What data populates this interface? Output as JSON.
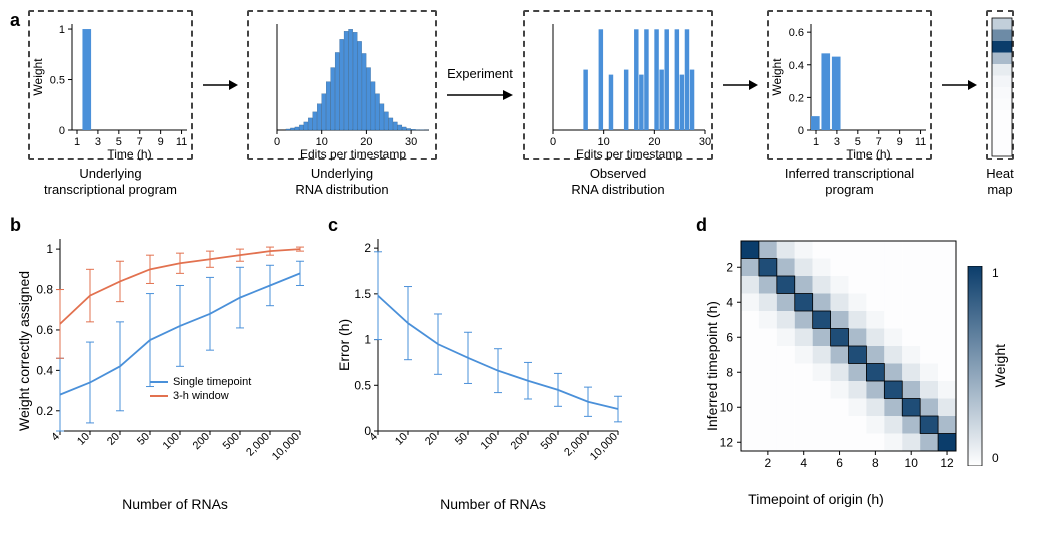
{
  "colors": {
    "blue": "#4a90d9",
    "orange": "#e2714f",
    "axis": "#000000",
    "dashed_border": "#444444",
    "bg": "#ffffff",
    "heat_dark": "#0b3d6b",
    "heat_mid": "#6fa3cf",
    "heat_light": "#dde9f3"
  },
  "panel_a": {
    "label": "a",
    "p1": {
      "caption": "Underlying\ntranscriptional program",
      "ylabel": "Weight",
      "xlabel": "Time (h)",
      "xticks": [
        "1",
        "3",
        "5",
        "7",
        "9",
        "11"
      ],
      "yticks": [
        "0",
        "0.5",
        "1"
      ],
      "ylim": [
        0,
        1.05
      ],
      "bars": {
        "x": 2,
        "h": 1.0
      }
    },
    "p2": {
      "caption": "Underlying\nRNA distribution",
      "xlabel": "Edits per timestamp",
      "xticks": [
        "0",
        "10",
        "20",
        "30"
      ],
      "hist": {
        "xmin": 0,
        "xmax": 34,
        "nbins": 34,
        "heights": [
          0,
          0,
          0.01,
          0.02,
          0.03,
          0.05,
          0.08,
          0.12,
          0.18,
          0.26,
          0.36,
          0.48,
          0.62,
          0.77,
          0.9,
          0.98,
          1.0,
          0.97,
          0.88,
          0.76,
          0.62,
          0.48,
          0.36,
          0.26,
          0.18,
          0.12,
          0.08,
          0.05,
          0.03,
          0.015,
          0.008,
          0.004,
          0.002,
          0.001
        ]
      }
    },
    "arrow1": {
      "label": ""
    },
    "arrow2": {
      "label": "Experiment"
    },
    "p3": {
      "caption": "Observed\nRNA distribution",
      "xlabel": "Edits per timestamp",
      "xticks": [
        "0",
        "10",
        "20",
        "30"
      ],
      "bars_x": [
        6,
        9,
        11,
        14,
        16,
        17,
        18,
        20,
        21,
        22,
        24,
        25,
        26,
        27
      ],
      "bars_h": [
        0.6,
        1,
        0.55,
        0.6,
        1,
        0.55,
        1,
        1,
        0.6,
        1,
        1,
        0.55,
        1,
        0.6
      ]
    },
    "arrow3": {
      "label": ""
    },
    "p4": {
      "caption": "Inferred transcriptional\nprogram",
      "ylabel": "Weight",
      "xlabel": "Time (h)",
      "xticks": [
        "1",
        "3",
        "5",
        "7",
        "9",
        "11"
      ],
      "yticks": [
        "0",
        "0.2",
        "0.4",
        "0.6"
      ],
      "ylim": [
        0,
        0.65
      ],
      "bars": [
        {
          "x": 1,
          "h": 0.085
        },
        {
          "x": 2,
          "h": 0.47
        },
        {
          "x": 3,
          "h": 0.45
        }
      ]
    },
    "arrow4": {
      "label": ""
    },
    "p5": {
      "caption": "Heat\nmap",
      "cells": [
        0.25,
        0.6,
        1.0,
        0.35,
        0.1,
        0.05,
        0.03,
        0.02,
        0.01,
        0.01,
        0.01,
        0.01
      ]
    }
  },
  "panel_b": {
    "label": "b",
    "ylabel": "Weight correctly assigned",
    "xlabel": "Number of RNAs",
    "xticks": [
      "4",
      "10",
      "20",
      "50",
      "100",
      "200",
      "500",
      "2,000",
      "10,000"
    ],
    "yticks": [
      "0.2",
      "0.4",
      "0.6",
      "0.8",
      "1"
    ],
    "ylim": [
      0.1,
      1.05
    ],
    "legend": [
      {
        "label": "Single timepoint",
        "color_key": "blue"
      },
      {
        "label": "3-h window",
        "color_key": "orange"
      }
    ],
    "series1": {
      "color_key": "blue",
      "y": [
        0.28,
        0.34,
        0.42,
        0.55,
        0.62,
        0.68,
        0.76,
        0.82,
        0.88
      ],
      "err": [
        0.18,
        0.2,
        0.22,
        0.23,
        0.2,
        0.18,
        0.15,
        0.1,
        0.06
      ]
    },
    "series2": {
      "color_key": "orange",
      "y": [
        0.63,
        0.77,
        0.84,
        0.9,
        0.93,
        0.95,
        0.97,
        0.99,
        1.0
      ],
      "err": [
        0.17,
        0.13,
        0.1,
        0.07,
        0.05,
        0.04,
        0.03,
        0.02,
        0.01
      ]
    }
  },
  "panel_c": {
    "label": "c",
    "ylabel": "Error (h)",
    "xlabel": "Number of RNAs",
    "xticks": [
      "4",
      "10",
      "20",
      "50",
      "100",
      "200",
      "500",
      "2,000",
      "10,000"
    ],
    "yticks": [
      "0",
      "0.5",
      "1",
      "1.5",
      "2"
    ],
    "ylim": [
      0,
      2.1
    ],
    "series": {
      "color_key": "blue",
      "y": [
        1.48,
        1.18,
        0.95,
        0.8,
        0.66,
        0.55,
        0.45,
        0.32,
        0.24
      ],
      "err": [
        0.48,
        0.4,
        0.33,
        0.28,
        0.24,
        0.2,
        0.18,
        0.16,
        0.14
      ]
    }
  },
  "panel_d": {
    "label": "d",
    "ylabel": "Inferred timepoint (h)",
    "xlabel": "Timepoint of origin (h)",
    "xticks": [
      "2",
      "4",
      "6",
      "8",
      "10",
      "12"
    ],
    "yticks": [
      "2",
      "4",
      "6",
      "8",
      "10",
      "12"
    ],
    "cbar_label": "Weight",
    "cbar_ticks": [
      "0",
      "1"
    ],
    "grid_n": 12,
    "diag_outline": true
  }
}
